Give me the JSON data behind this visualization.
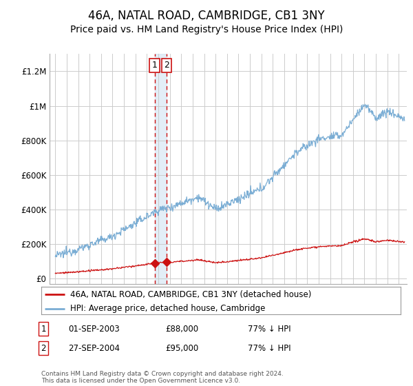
{
  "title": "46A, NATAL ROAD, CAMBRIDGE, CB1 3NY",
  "subtitle": "Price paid vs. HM Land Registry's House Price Index (HPI)",
  "title_fontsize": 12,
  "subtitle_fontsize": 10,
  "ylabel_ticks": [
    "£0",
    "£200K",
    "£400K",
    "£600K",
    "£800K",
    "£1M",
    "£1.2M"
  ],
  "ytick_values": [
    0,
    200000,
    400000,
    600000,
    800000,
    1000000,
    1200000
  ],
  "ylim": [
    -30000,
    1300000
  ],
  "xlim_start": 1994.5,
  "xlim_end": 2025.7,
  "hpi_color": "#7aadd4",
  "price_color": "#cc1111",
  "background_color": "#ffffff",
  "grid_color": "#cccccc",
  "legend_label_red": "46A, NATAL ROAD, CAMBRIDGE, CB1 3NY (detached house)",
  "legend_label_blue": "HPI: Average price, detached house, Cambridge",
  "transaction1_x": 2003.67,
  "transaction1_y": 88000,
  "transaction2_x": 2004.73,
  "transaction2_y": 95000,
  "footer": "Contains HM Land Registry data © Crown copyright and database right 2024.\nThis data is licensed under the Open Government Licence v3.0.",
  "table_rows": [
    {
      "num": "1",
      "date": "01-SEP-2003",
      "price": "£88,000",
      "hpi": "77% ↓ HPI"
    },
    {
      "num": "2",
      "date": "27-SEP-2004",
      "price": "£95,000",
      "hpi": "77% ↓ HPI"
    }
  ]
}
